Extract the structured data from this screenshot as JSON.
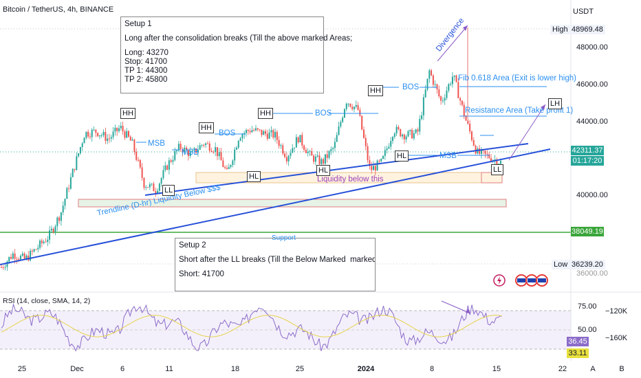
{
  "header": {
    "symbol": "Bitcoin / TetherUS, 4h, BINANCE",
    "currency": "USDT"
  },
  "price_axis": {
    "ticks": [
      "48000.00",
      "46000.00",
      "44000.00",
      "40000.00"
    ],
    "high_label": "High",
    "high_value": "48969.48",
    "low_label": "Low",
    "low_value": "36239.20",
    "last_price": "42311.37",
    "countdown": "01:17:20",
    "support_value": "38049.19",
    "partial_tick": "36000.00"
  },
  "rsi_axis": {
    "ticks": [
      "75.00",
      "50.00"
    ],
    "volume_ticks": [
      "−120K",
      "−160K"
    ],
    "rsi_value": "36.45",
    "ma_value": "33.11"
  },
  "x_axis": {
    "labels": [
      "25",
      "Dec",
      "6",
      "11",
      "18",
      "25",
      "2024",
      "8",
      "15",
      "22"
    ]
  },
  "rsi_indicator": {
    "label": "RSI (14, close, SMA, 14, 2)"
  },
  "setup1": {
    "title": "Setup 1",
    "desc": "Long after the consolidation breaks (Till the above marked Areas;",
    "lines": [
      "Long: 43270",
      "Stop: 41700",
      "TP 1: 44300",
      "TP 2: 45800"
    ]
  },
  "setup2": {
    "title": "Setup 2",
    "desc": "Short after the LL breaks (Till the Below Marked  marked Areas;",
    "lines": [
      "Short: 41700"
    ]
  },
  "annotations": {
    "msb": "MSB",
    "bos": "BOS",
    "fib": "Fib 0.618 Area (Exit is lower high)",
    "resistance": "Resistance Area (Take profit 1)",
    "liquidity": "Liquidity below this",
    "trendline": "Trendline (D-hr) Liquidity Below $$$",
    "support": "Support",
    "divergence": "Divergence"
  },
  "tags": {
    "hh": "HH",
    "hl": "HL",
    "ll": "LL",
    "lh": "LH"
  },
  "footer_buttons": {
    "auto": "A",
    "log": "B"
  },
  "chart_data": {
    "type": "candlestick",
    "title": "Bitcoin / TetherUS, 4h, BINANCE",
    "ylabel": "USDT",
    "ylim": [
      35800,
      49600
    ],
    "x": [
      "Nov 25",
      "Dec 1",
      "Dec 6",
      "Dec 11",
      "Dec 18",
      "Dec 25",
      "2024",
      "Jan 8",
      "Jan 15",
      "Jan 22"
    ],
    "close_path": [
      36900,
      37600,
      37300,
      37900,
      38500,
      39700,
      41800,
      43800,
      43900,
      43500,
      44100,
      43300,
      41200,
      40900,
      42200,
      43100,
      42700,
      43300,
      43000,
      41700,
      43700,
      44000,
      43800,
      43700,
      42600,
      43600,
      42600,
      42300,
      43100,
      45500,
      45000,
      41900,
      42300,
      44000,
      43700,
      43800,
      47000,
      45400,
      46800,
      44600,
      42800,
      42600,
      42300
    ],
    "high": 48969.48,
    "low": 36239.2,
    "last": 42311.37,
    "support": 38049.19,
    "rsi": {
      "levels": [
        75,
        50
      ],
      "last": 36.45,
      "ma_last": 33.11
    }
  },
  "colors": {
    "up": "#26a69a",
    "down": "#ef5350",
    "trend": "#2650d8",
    "ann": "#2a8ff0",
    "support": "#3aa53a",
    "purple": "#8b5cc8"
  }
}
